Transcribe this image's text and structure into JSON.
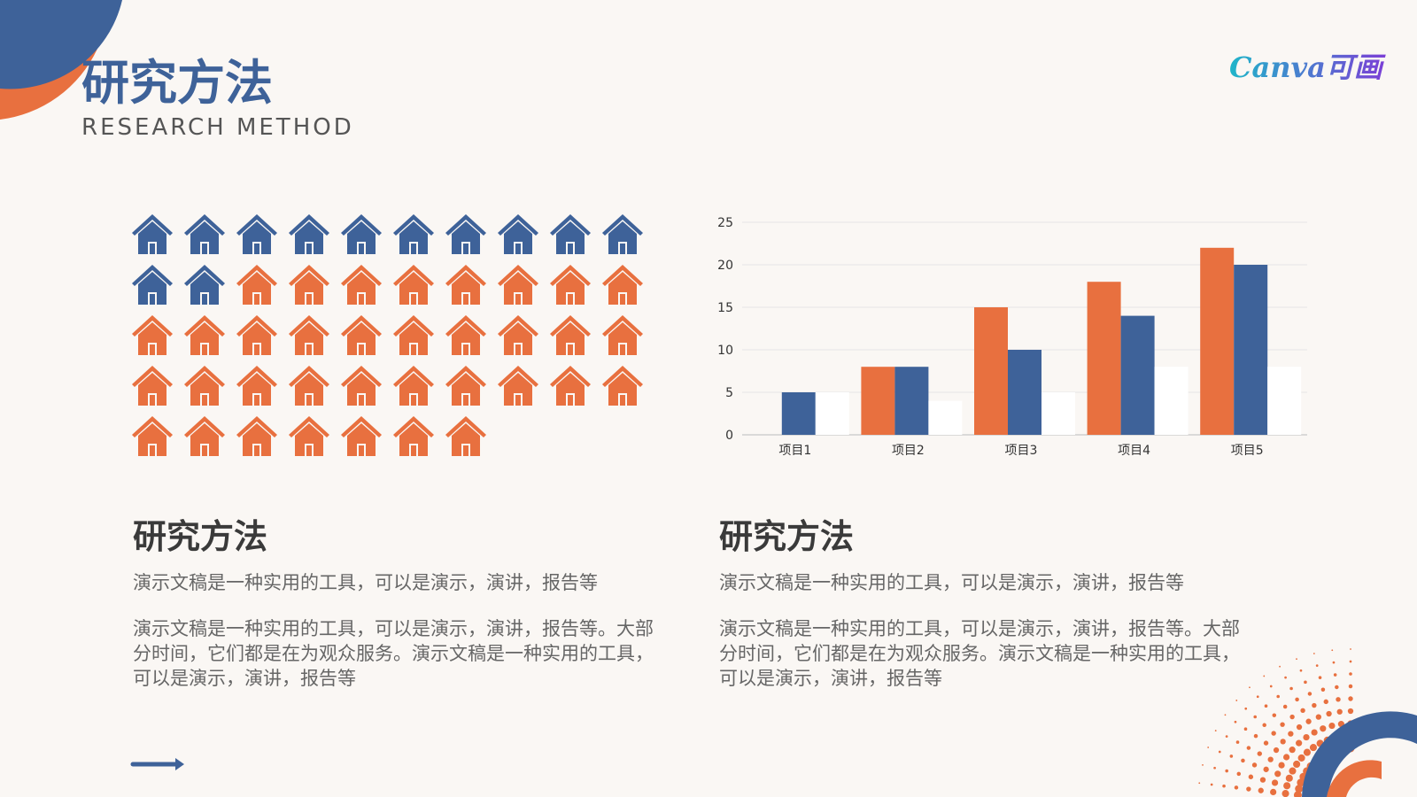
{
  "header": {
    "title": "研究方法",
    "subtitle": "RESEARCH METHOD",
    "logo": "Canva可画"
  },
  "pictogram": {
    "values": [
      12,
      35
    ],
    "colors": [
      "#3e6299",
      "#e8703f"
    ]
  },
  "chart_data": {
    "type": "bar",
    "categories": [
      "项目1",
      "项目2",
      "项目3",
      "项目4",
      "项目5"
    ],
    "series": [
      {
        "color": "#e8703f",
        "values": [
          0,
          8,
          15,
          18,
          22
        ]
      },
      {
        "color": "#3e6299",
        "values": [
          5,
          8,
          10,
          14,
          20
        ]
      },
      {
        "color": "#ffffff",
        "values": [
          5,
          4,
          5,
          8,
          8
        ]
      }
    ],
    "ylim": [
      0,
      25
    ],
    "yticks": [
      0,
      5,
      10,
      15,
      20,
      25
    ],
    "grid": true
  },
  "sections": [
    {
      "title": "研究方法",
      "lead": "演示文稿是一种实用的工具，可以是演示，演讲，报告等",
      "body": "演示文稿是一种实用的工具，可以是演示，演讲，报告等。大部分时间，它们都是在为观众服务。演示文稿是一种实用的工具，可以是演示，演讲，报告等"
    },
    {
      "title": "研究方法",
      "lead": "演示文稿是一种实用的工具，可以是演示，演讲，报告等",
      "body": "演示文稿是一种实用的工具，可以是演示，演讲，报告等。大部分时间，它们都是在为观众服务。演示文稿是一种实用的工具，可以是演示，演讲，报告等"
    }
  ]
}
